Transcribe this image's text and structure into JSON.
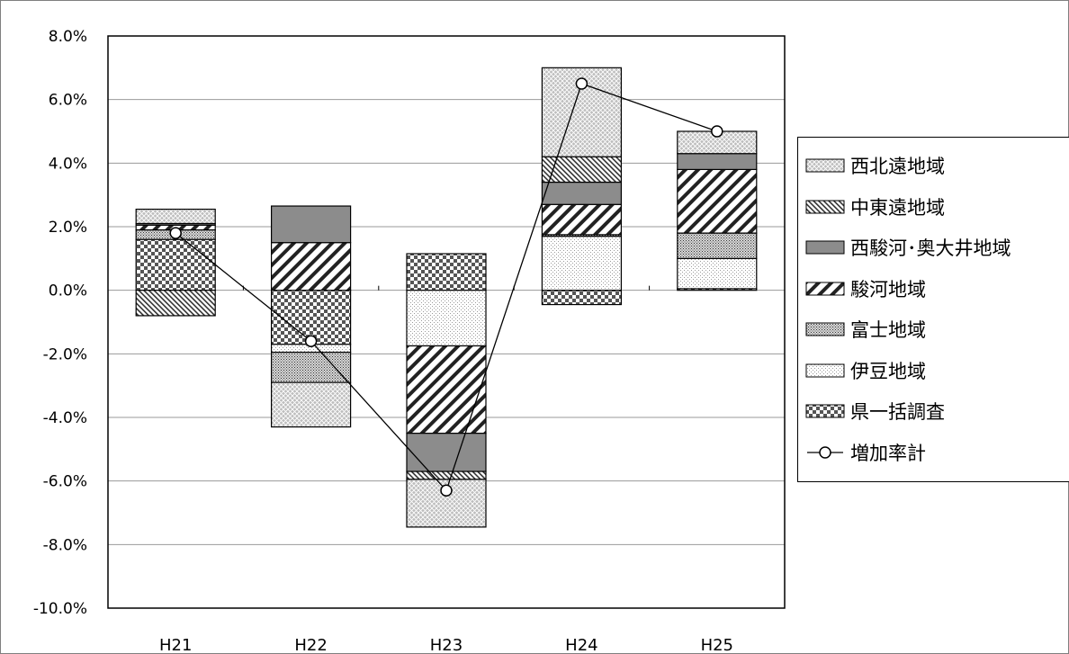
{
  "chart_data": {
    "type": "bar",
    "stacked": true,
    "categories": [
      "H21",
      "H22",
      "H23",
      "H24",
      "H25"
    ],
    "ylim": [
      -10,
      8
    ],
    "yticks": [
      "8.0%",
      "6.0%",
      "4.0%",
      "2.0%",
      "0.0%",
      "-2.0%",
      "-4.0%",
      "-6.0%",
      "-8.0%",
      "-10.0%"
    ],
    "grid": true,
    "legend_position": "right",
    "series": [
      {
        "name": "県一括調査",
        "pattern": "checker",
        "values": [
          1.6,
          -1.7,
          1.15,
          -0.45,
          0.05
        ]
      },
      {
        "name": "伊豆地域",
        "pattern": "fine-dots",
        "values": [
          0.0,
          -0.25,
          -1.75,
          1.7,
          0.95
        ]
      },
      {
        "name": "富士地域",
        "pattern": "dense-dots",
        "values": [
          0.3,
          -0.95,
          0.0,
          0.05,
          0.8
        ]
      },
      {
        "name": "駿河地域",
        "pattern": "diagonal",
        "values": [
          0.15,
          1.5,
          -2.75,
          0.95,
          2.0
        ]
      },
      {
        "name": "西駿河･奥大井地域",
        "pattern": "solid-gray",
        "values": [
          0.05,
          1.15,
          -1.2,
          0.7,
          0.5
        ]
      },
      {
        "name": "中東遠地域",
        "pattern": "back-diagonal",
        "values": [
          -0.8,
          0.0,
          -0.25,
          0.8,
          0.0
        ]
      },
      {
        "name": "西北遠地域",
        "pattern": "crosshatch",
        "values": [
          0.45,
          -1.4,
          -1.5,
          2.8,
          0.7
        ]
      }
    ],
    "line_series": {
      "name": "増加率計",
      "values": [
        1.8,
        -1.6,
        -6.3,
        6.5,
        5.0
      ]
    },
    "colors": {
      "solid_gray": "#8c8c8c",
      "line": "#000000",
      "grid": "#9a9a9a"
    }
  },
  "legend": {
    "items": [
      {
        "name": "西北遠地域",
        "pattern": "crosshatch"
      },
      {
        "name": "中東遠地域",
        "pattern": "back-diagonal"
      },
      {
        "name": "西駿河･奥大井地域",
        "pattern": "solid-gray"
      },
      {
        "name": "駿河地域",
        "pattern": "diagonal"
      },
      {
        "name": "富士地域",
        "pattern": "dense-dots"
      },
      {
        "name": "伊豆地域",
        "pattern": "fine-dots"
      },
      {
        "name": "県一括調査",
        "pattern": "checker"
      },
      {
        "name": "増加率計",
        "pattern": "line"
      }
    ]
  }
}
